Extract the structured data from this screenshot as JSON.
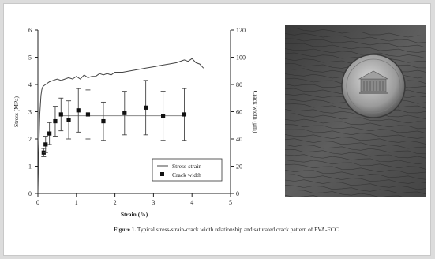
{
  "chart_data": {
    "type": "line",
    "xlabel": "Strain (%)",
    "ylabel_left": "Stress (MPa)",
    "ylabel_right": "Crack width (μm)",
    "xlim": [
      0,
      5
    ],
    "ylim_left": [
      0,
      6
    ],
    "ylim_right": [
      0,
      120
    ],
    "x_ticks": [
      "0",
      "1",
      "2",
      "3",
      "4",
      "5"
    ],
    "y_left_ticks": [
      "0",
      "1",
      "2",
      "3",
      "4",
      "5",
      "6"
    ],
    "y_right_ticks": [
      "0",
      "20",
      "40",
      "60",
      "80",
      "100",
      "120"
    ],
    "legend_position": "lower-right",
    "series": [
      {
        "name": "Stress-strain",
        "axis": "left",
        "x": [
          0,
          0.02,
          0.05,
          0.08,
          0.1,
          0.12,
          0.15,
          0.2,
          0.3,
          0.4,
          0.5,
          0.6,
          0.7,
          0.8,
          0.9,
          1.0,
          1.1,
          1.2,
          1.3,
          1.4,
          1.5,
          1.6,
          1.7,
          1.8,
          1.9,
          2.0,
          2.2,
          2.4,
          2.6,
          2.8,
          3.0,
          3.2,
          3.4,
          3.6,
          3.8,
          3.9,
          4.0,
          4.1,
          4.2,
          4.3
        ],
        "y": [
          0,
          1.5,
          2.9,
          3.6,
          3.8,
          3.9,
          3.95,
          4.0,
          4.1,
          4.15,
          4.2,
          4.15,
          4.2,
          4.25,
          4.2,
          4.3,
          4.2,
          4.35,
          4.25,
          4.3,
          4.3,
          4.4,
          4.35,
          4.4,
          4.35,
          4.45,
          4.45,
          4.5,
          4.55,
          4.6,
          4.65,
          4.7,
          4.75,
          4.8,
          4.9,
          4.85,
          4.95,
          4.8,
          4.75,
          4.6
        ]
      },
      {
        "name": "Crack width",
        "axis": "right",
        "x": [
          0.15,
          0.2,
          0.3,
          0.45,
          0.6,
          0.8,
          1.05,
          1.3,
          1.7,
          2.25,
          2.8,
          3.25,
          3.8
        ],
        "y": [
          30,
          36,
          44,
          53,
          58,
          54,
          61,
          58,
          53,
          59,
          63,
          57,
          58
        ],
        "error_plus": [
          3,
          6,
          8,
          11,
          12,
          14,
          16,
          18,
          14,
          16,
          20,
          18,
          19
        ],
        "error_minus": [
          3,
          6,
          8,
          11,
          12,
          14,
          16,
          18,
          14,
          16,
          20,
          18,
          19
        ],
        "reference_line": 57
      }
    ]
  },
  "caption": {
    "label": "Figure 1.",
    "text": "Typical stress-strain-crack width relationship and saturated crack pattern of PVA-ECC."
  },
  "photo": {
    "alt": "saturated-crack-pattern-with-penny"
  }
}
